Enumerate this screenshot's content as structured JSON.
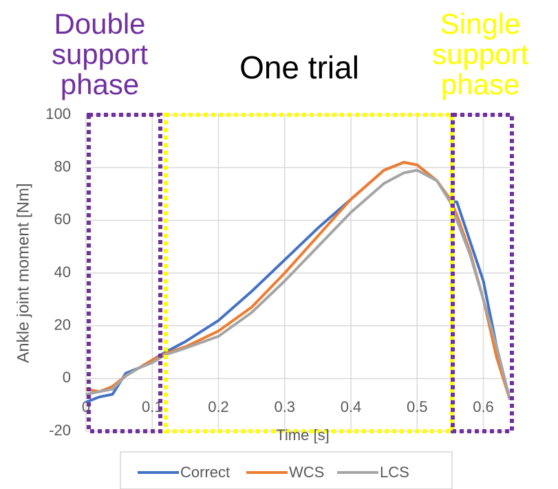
{
  "chart_data": {
    "type": "line",
    "title": "One trial",
    "x_label": "Time [s]",
    "y_label": "Ankle joint moment [Nm]",
    "annotations": [
      {
        "lines": [
          "Double",
          "support",
          "phase"
        ],
        "color": "#7030a0"
      },
      {
        "lines": [
          "Single",
          "support",
          "phase"
        ],
        "color": "#ffff00"
      }
    ],
    "x": [
      0,
      0.02,
      0.04,
      0.06,
      0.08,
      0.1,
      0.12,
      0.15,
      0.2,
      0.25,
      0.3,
      0.35,
      0.4,
      0.45,
      0.48,
      0.5,
      0.53,
      0.55,
      0.56,
      0.58,
      0.6,
      0.62,
      0.64
    ],
    "series": [
      {
        "name": "Correct",
        "color": "#4472c4",
        "values": [
          -9,
          -7,
          -6,
          2,
          4,
          7,
          10,
          14,
          22,
          33,
          45,
          57,
          68,
          79,
          82,
          81,
          75,
          67,
          67,
          52,
          37,
          12,
          -8
        ]
      },
      {
        "name": "WCS",
        "color": "#ed7d31",
        "values": [
          -4,
          -5,
          -3,
          1,
          4,
          7,
          9.5,
          12,
          18,
          27,
          40,
          54,
          68,
          79,
          82,
          81,
          75,
          68,
          62,
          48,
          30,
          8,
          -8
        ]
      },
      {
        "name": "LCS",
        "color": "#a5a5a5",
        "values": [
          -6,
          -5,
          -4,
          1,
          4,
          6,
          9,
          11.5,
          16,
          25,
          37,
          50,
          63,
          74,
          78,
          79,
          75,
          67,
          60,
          47,
          30,
          12,
          -8
        ]
      }
    ],
    "xlim": [
      0,
      0.64
    ],
    "ylim": [
      -20,
      100
    ],
    "xticks": [
      0,
      0.1,
      0.2,
      0.3,
      0.4,
      0.5,
      0.6
    ],
    "yticks": [
      -20,
      0,
      20,
      40,
      60,
      80,
      100
    ],
    "grid": true
  }
}
